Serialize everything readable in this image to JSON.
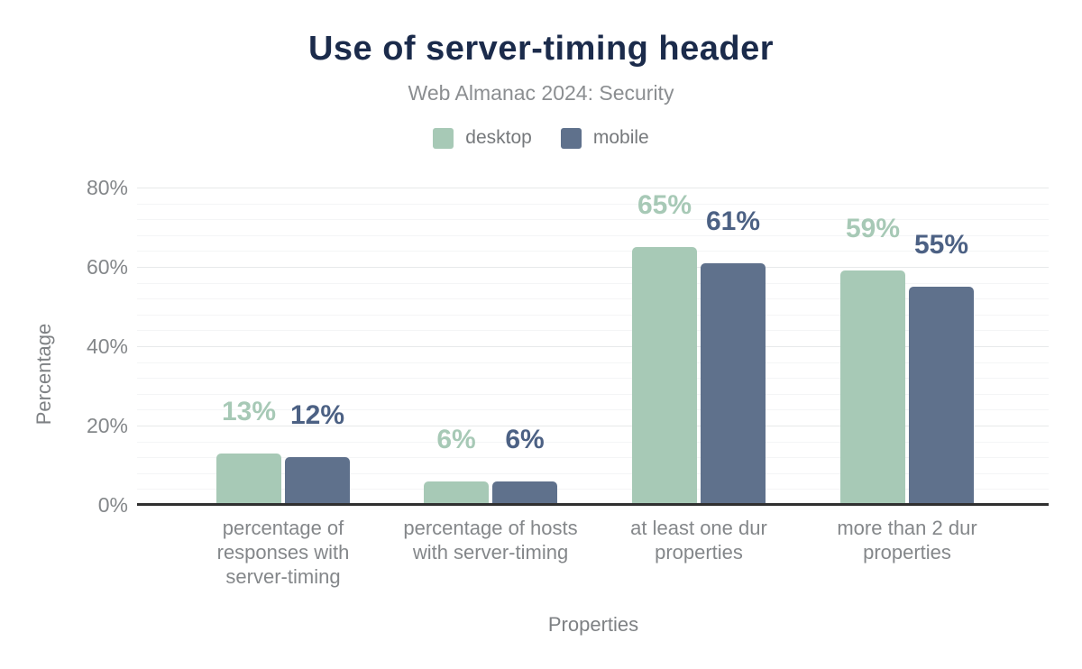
{
  "chart_data": {
    "type": "bar",
    "title": "Use of server-timing header",
    "subtitle": "Web Almanac 2024: Security",
    "xlabel": "Properties",
    "ylabel": "Percentage",
    "categories": [
      "percentage of responses with server-timing",
      "percentage of hosts with server-timing",
      "at least one dur properties",
      "more than 2 dur properties"
    ],
    "series": [
      {
        "name": "desktop",
        "color": "#a7c9b6",
        "label_color": "#a7c9b6",
        "values": [
          13,
          6,
          65,
          59
        ],
        "labels": [
          "13%",
          "6%",
          "65%",
          "59%"
        ]
      },
      {
        "name": "mobile",
        "color": "#5f718c",
        "label_color": "#4c6184",
        "values": [
          12,
          6,
          61,
          55
        ],
        "labels": [
          "12%",
          "6%",
          "61%",
          "55%"
        ]
      }
    ],
    "ylim": [
      0,
      80
    ],
    "ytick_step": 20,
    "ytick_labels": [
      "0%",
      "20%",
      "40%",
      "60%",
      "80%"
    ],
    "minor_gridline_step": 4,
    "grid": true,
    "legend_position": "top"
  },
  "colors": {
    "title": "#1b2b4b",
    "subtitle": "#8b8e91",
    "legend_text": "#76797c",
    "tick_label": "#84878a",
    "category_label": "#84878a",
    "axis_title": "#7e8184",
    "gridline_minor": "#f4f5f6",
    "gridline_major": "#e7e9ea",
    "axis_line": "#303030",
    "background": "#ffffff"
  }
}
